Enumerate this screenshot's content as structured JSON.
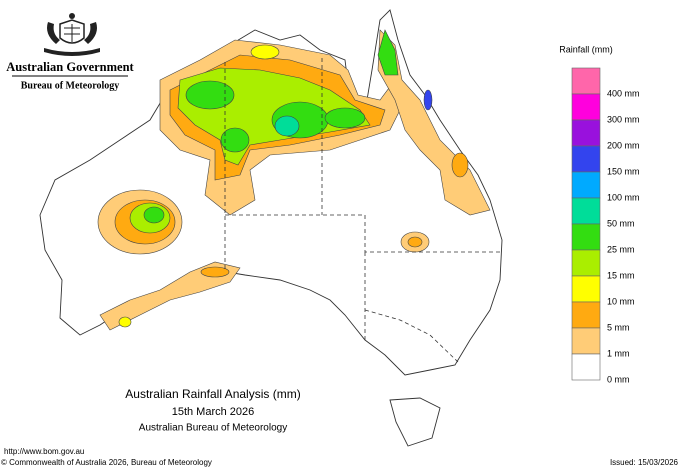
{
  "header": {
    "government": "Australian Government",
    "bureau": "Bureau of Meteorology"
  },
  "legend": {
    "title": "Rainfall (mm)",
    "colors": [
      "#ff66aa",
      "#ff00dd",
      "#9911dd",
      "#3344ee",
      "#00aaff",
      "#00dd99",
      "#33dd11",
      "#aaee00",
      "#ffff00",
      "#ffaa11",
      "#ffcc77",
      "#ffffff"
    ],
    "labels": [
      "400 mm",
      "300 mm",
      "200 mm",
      "150 mm",
      "100 mm",
      "50 mm",
      "25 mm",
      "15 mm",
      "10 mm",
      "5 mm",
      "1 mm",
      "0 mm"
    ]
  },
  "title": {
    "lines": [
      "Australian Rainfall Analysis (mm)",
      "15th March 2026",
      "Australian Bureau of Meteorology"
    ]
  },
  "footer": {
    "url": "http://www.bom.gov.au",
    "copyright": "© Commonwealth of Australia 2026, Bureau of Meteorology",
    "issued": "Issued: 15/03/2026"
  }
}
